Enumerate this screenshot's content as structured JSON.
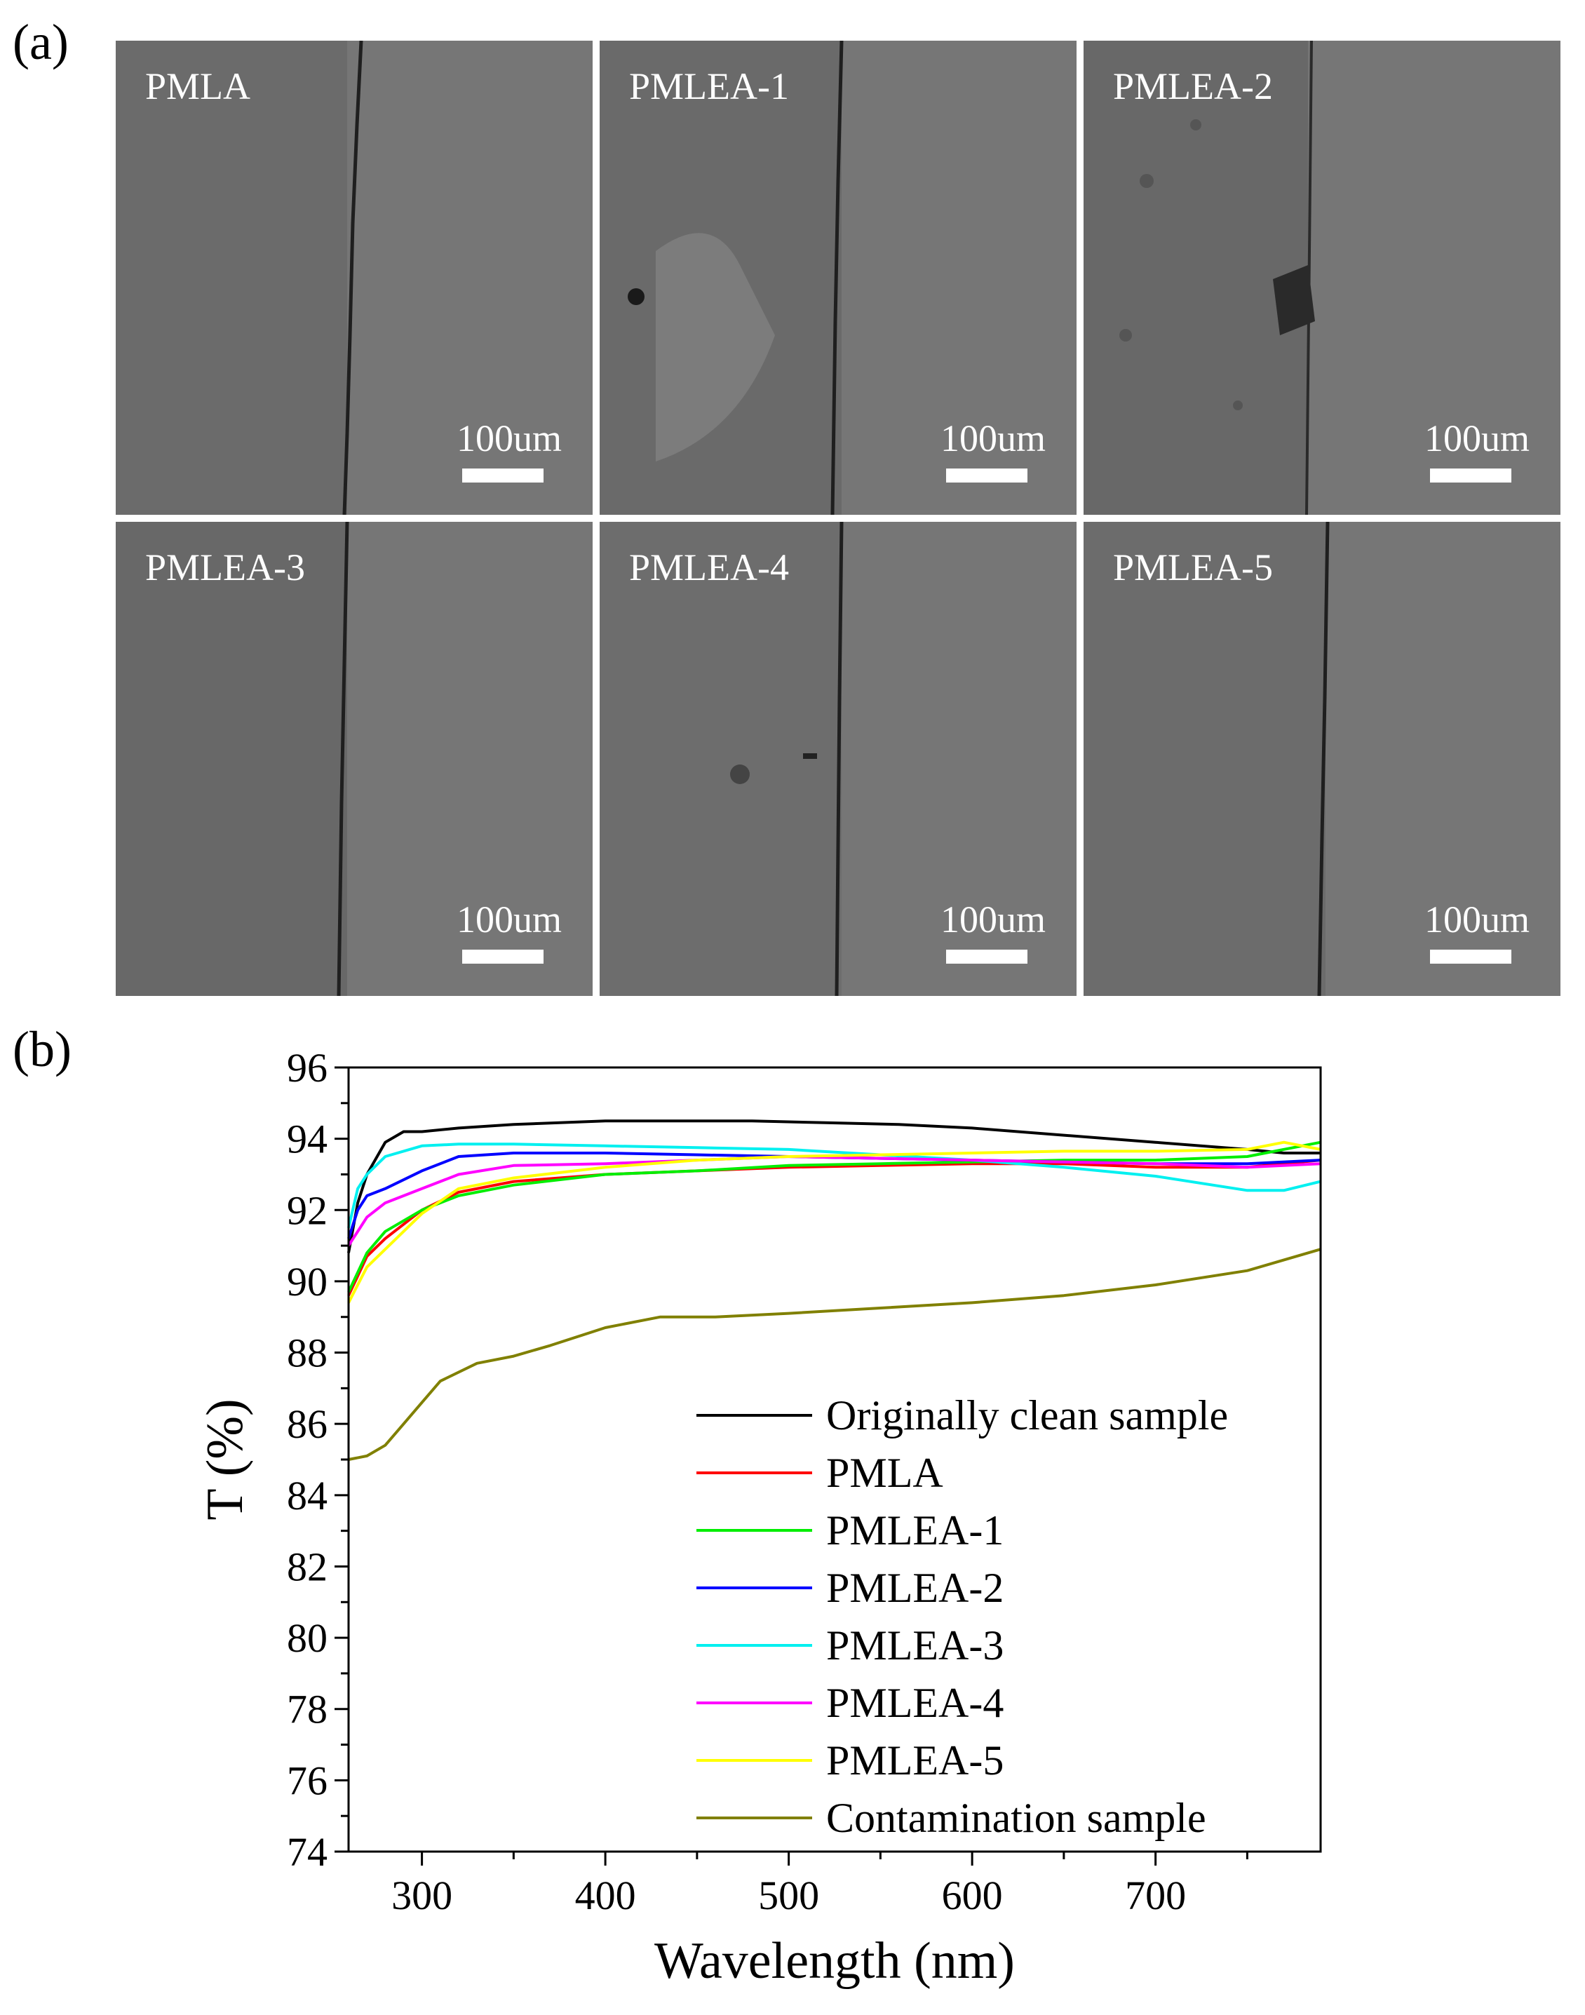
{
  "panel_labels": {
    "a": "(a)",
    "b": "(b)"
  },
  "micrographs": [
    {
      "name": "PMLA",
      "scale": "100um"
    },
    {
      "name": "PMLEA-1",
      "scale": "100um"
    },
    {
      "name": "PMLEA-2",
      "scale": "100um"
    },
    {
      "name": "PMLEA-3",
      "scale": "100um"
    },
    {
      "name": "PMLEA-4",
      "scale": "100um"
    },
    {
      "name": "PMLEA-5",
      "scale": "100um"
    }
  ],
  "chart_data": {
    "type": "line",
    "title": "",
    "xlabel": "Wavelength (nm)",
    "ylabel": "T (%)",
    "xlim": [
      260,
      790
    ],
    "ylim": [
      74,
      96
    ],
    "xticks": [
      300,
      400,
      500,
      600,
      700
    ],
    "yticks": [
      74,
      76,
      78,
      80,
      82,
      84,
      86,
      88,
      90,
      92,
      94,
      96
    ],
    "grid": false,
    "legend": "bottom-right",
    "series": [
      {
        "name": "Originally clean sample",
        "color": "#000000",
        "x": [
          260,
          265,
          270,
          280,
          290,
          300,
          320,
          350,
          400,
          450,
          480,
          520,
          560,
          600,
          650,
          700,
          750,
          770,
          790
        ],
        "y": [
          90.8,
          92.2,
          93.0,
          93.9,
          94.2,
          94.2,
          94.3,
          94.4,
          94.5,
          94.5,
          94.5,
          94.45,
          94.4,
          94.3,
          94.1,
          93.9,
          93.7,
          93.6,
          93.6
        ]
      },
      {
        "name": "PMLA",
        "color": "#ff0000",
        "x": [
          260,
          270,
          280,
          300,
          320,
          350,
          400,
          450,
          500,
          550,
          600,
          650,
          700,
          750,
          790
        ],
        "y": [
          89.6,
          90.7,
          91.2,
          92.0,
          92.5,
          92.8,
          93.0,
          93.1,
          93.2,
          93.25,
          93.3,
          93.3,
          93.2,
          93.2,
          93.4
        ]
      },
      {
        "name": "PMLEA-1",
        "color": "#00ee00",
        "x": [
          260,
          270,
          280,
          300,
          320,
          350,
          400,
          450,
          500,
          550,
          600,
          650,
          700,
          750,
          790
        ],
        "y": [
          89.7,
          90.8,
          91.4,
          92.0,
          92.4,
          92.7,
          93.0,
          93.1,
          93.25,
          93.3,
          93.35,
          93.4,
          93.4,
          93.5,
          93.9
        ]
      },
      {
        "name": "PMLEA-2",
        "color": "#0000ff",
        "x": [
          260,
          265,
          270,
          280,
          300,
          320,
          350,
          400,
          450,
          500,
          550,
          600,
          650,
          700,
          750,
          790
        ],
        "y": [
          91.2,
          92.0,
          92.4,
          92.6,
          93.1,
          93.5,
          93.6,
          93.6,
          93.55,
          93.5,
          93.45,
          93.4,
          93.35,
          93.3,
          93.3,
          93.4
        ]
      },
      {
        "name": "PMLEA-3",
        "color": "#00f0f0",
        "x": [
          260,
          265,
          270,
          280,
          300,
          320,
          350,
          400,
          450,
          500,
          550,
          600,
          650,
          700,
          750,
          770,
          790
        ],
        "y": [
          91.5,
          92.6,
          93.0,
          93.5,
          93.8,
          93.85,
          93.85,
          93.8,
          93.75,
          93.7,
          93.55,
          93.4,
          93.2,
          92.95,
          92.55,
          92.55,
          92.8
        ]
      },
      {
        "name": "PMLEA-4",
        "color": "#ff00ff",
        "x": [
          260,
          270,
          280,
          300,
          320,
          350,
          400,
          450,
          500,
          550,
          600,
          650,
          700,
          750,
          790
        ],
        "y": [
          91.0,
          91.8,
          92.2,
          92.6,
          93.0,
          93.25,
          93.3,
          93.4,
          93.5,
          93.45,
          93.4,
          93.35,
          93.3,
          93.2,
          93.3
        ]
      },
      {
        "name": "PMLEA-5",
        "color": "#ffff00",
        "x": [
          260,
          270,
          280,
          300,
          320,
          350,
          400,
          450,
          500,
          550,
          600,
          650,
          700,
          750,
          770,
          790
        ],
        "y": [
          89.4,
          90.4,
          90.9,
          91.9,
          92.6,
          92.9,
          93.2,
          93.4,
          93.5,
          93.55,
          93.6,
          93.65,
          93.65,
          93.7,
          93.9,
          93.7
        ]
      },
      {
        "name": "Contamination sample",
        "color": "#808000",
        "x": [
          260,
          270,
          280,
          290,
          300,
          310,
          330,
          350,
          370,
          400,
          430,
          460,
          500,
          550,
          600,
          650,
          700,
          750,
          770,
          790
        ],
        "y": [
          85.0,
          85.1,
          85.4,
          86.0,
          86.6,
          87.2,
          87.7,
          87.9,
          88.2,
          88.7,
          89.0,
          89.0,
          89.1,
          89.25,
          89.4,
          89.6,
          89.9,
          90.3,
          90.6,
          90.9
        ]
      }
    ]
  }
}
